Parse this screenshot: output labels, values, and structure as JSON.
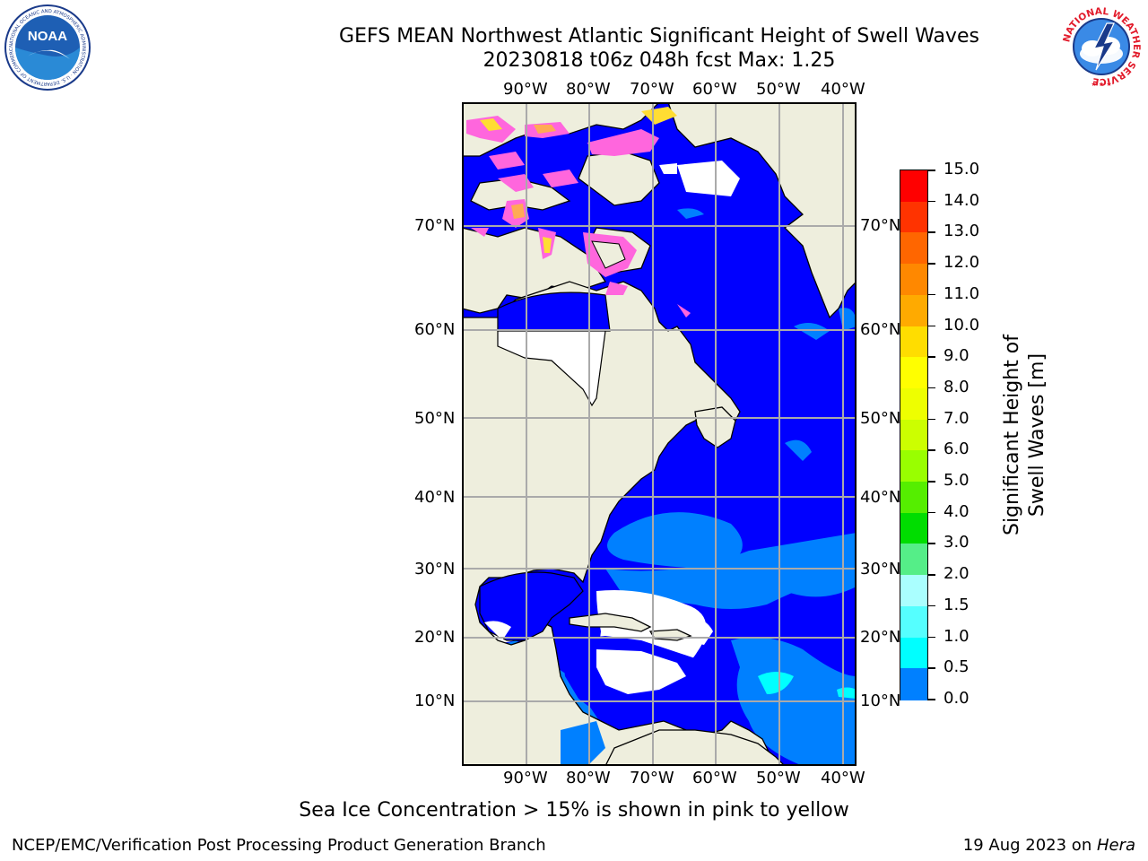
{
  "header": {
    "title_line1": "GEFS MEAN Northwest Atlantic Significant Height of Swell Waves",
    "title_line2": "20230818 t06z 048h fcst   Max: 1.25"
  },
  "logos": {
    "left": {
      "name": "NOARA-logo",
      "center_text": "NOAA",
      "ring_text": "NATIONAL OCEANIC AND ATMOSPHERIC ADMINISTRATION · U.S. DEPARTMENT OF COMMERCE"
    },
    "right": {
      "name": "nws-logo",
      "ring_text": "NATIONAL WEATHER SERVICE"
    }
  },
  "map": {
    "lon_labels": [
      "90°W",
      "80°W",
      "70°W",
      "60°W",
      "50°W",
      "40°W"
    ],
    "lat_labels": [
      "70°N",
      "60°N",
      "50°N",
      "40°N",
      "30°N",
      "20°N",
      "10°N"
    ],
    "colors": {
      "land": "#eeeedd",
      "ocean_low": "#0000ff",
      "ocean_mid": "#0080ff",
      "ocean_high": "#00ffff",
      "ice_pink": "#ff66dd",
      "ice_yellow": "#ffdd33",
      "no_data": "#ffffff",
      "grid": "#aaaaaa"
    }
  },
  "colorbar": {
    "title": "Significant Height of Swell Waves [m]",
    "ticks": [
      "15.0",
      "14.0",
      "13.0",
      "12.0",
      "11.0",
      "10.0",
      "9.0",
      "8.0",
      "7.0",
      "6.0",
      "5.0",
      "4.0",
      "3.0",
      "2.0",
      "1.5",
      "1.0",
      "0.5",
      "0.0"
    ],
    "colors": [
      "#ff0000",
      "#ff3300",
      "#ff6600",
      "#ff8800",
      "#ffaa00",
      "#ffdd00",
      "#ffff00",
      "#eeff00",
      "#ccff00",
      "#99ff00",
      "#55ee00",
      "#00dd00",
      "#55ee88",
      "#aaffff",
      "#55ffff",
      "#00ffff",
      "#0080ff",
      "#0000ff"
    ]
  },
  "caption": "Sea Ice Concentration > 15% is shown in pink to yellow",
  "footer": {
    "left": "NCEP/EMC/Verification Post Processing Product Generation Branch",
    "right_date": "19 Aug 2023 on ",
    "right_host": "Hera"
  }
}
